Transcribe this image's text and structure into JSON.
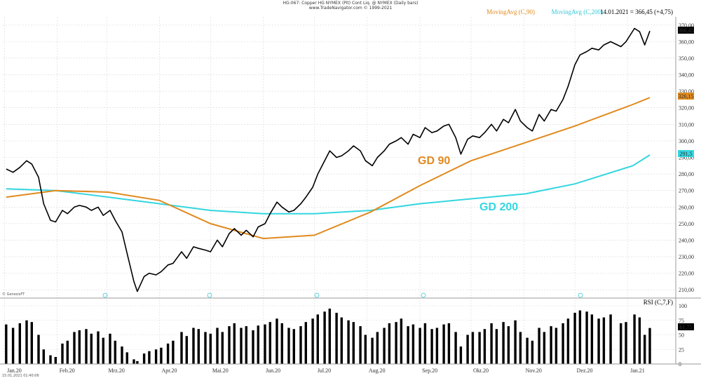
{
  "header": {
    "line1": "HG-067: Copper HG NYMEX (Pit) Cont Liq. @ NYMEX (Daily bars)",
    "line2": "www.TradeNavigator.com © 1999-2021"
  },
  "legend": {
    "ma90": "MovingAvg (C,90)",
    "ma200": "MovingAvg (C,200)",
    "readout": "14.01.2021 = 366,45 (+4,75)"
  },
  "annotations": {
    "gd90": "GD 90",
    "gd200": "GD 200"
  },
  "badges": {
    "last": "366,45",
    "ma90": "326,15",
    "ma200": "291,5",
    "rsi": "61,75"
  },
  "footer": {
    "genesis": "© GenesisFT",
    "timestamp": "15.01.2021 01:40:06"
  },
  "colors": {
    "price": "#000000",
    "ma90": "#e08a1e",
    "ma200": "#33d6e0",
    "rsi": "#000000",
    "grid": "#d8d8d8"
  },
  "chart_data": [
    {
      "type": "line",
      "title": "HG-067: Copper HG NYMEX (Pit) Cont Liq. @ NYMEX (Daily bars)",
      "xlabel": "",
      "ylabel": "",
      "ylim": [
        205,
        375
      ],
      "grid": true,
      "legend_position": "top-right",
      "months": [
        "Jan.20",
        "Feb.20",
        "Mrz.20",
        "Apr.20",
        "Mai.20",
        "Jun.20",
        "Jul.20",
        "Aug.20",
        "Sep.20",
        "Okt.20",
        "Nov.20",
        "Dez.20",
        "Jan.21"
      ],
      "y_ticks": [
        "210,00",
        "220,00",
        "230,00",
        "240,00",
        "250,00",
        "260,00",
        "270,00",
        "280,00",
        "290,00",
        "300,00",
        "310,00",
        "320,00",
        "330,00",
        "340,00",
        "350,00",
        "360,00",
        "370,00"
      ],
      "series": [
        {
          "name": "",
          "x": [
            "02.01.2020",
            "06.01.2020",
            "10.01.2020",
            "14.01.2020",
            "17.01.2020",
            "21.01.2020",
            "24.01.2020",
            "28.01.2020",
            "31.01.2020",
            "04.02.2020",
            "07.02.2020",
            "11.02.2020",
            "14.02.2020",
            "18.02.2020",
            "21.02.2020",
            "25.02.2020",
            "28.02.2020",
            "03.03.2020",
            "06.03.2020",
            "10.03.2020",
            "13.03.2020",
            "17.03.2020",
            "19.03.2020",
            "23.03.2020",
            "26.03.2020",
            "30.03.2020",
            "02.04.2020",
            "06.04.2020",
            "09.04.2020",
            "14.04.2020",
            "17.04.2020",
            "21.04.2020",
            "24.04.2020",
            "28.04.2020",
            "01.05.2020",
            "05.05.2020",
            "08.05.2020",
            "12.05.2020",
            "15.05.2020",
            "19.05.2020",
            "22.05.2020",
            "26.05.2020",
            "29.05.2020",
            "02.06.2020",
            "05.06.2020",
            "09.06.2020",
            "12.06.2020",
            "16.06.2020",
            "19.06.2020",
            "23.06.2020",
            "26.06.2020",
            "30.06.2020",
            "03.07.2020",
            "07.07.2020",
            "10.07.2020",
            "14.07.2020",
            "17.07.2020",
            "21.07.2020",
            "24.07.2020",
            "28.07.2020",
            "31.07.2020",
            "04.08.2020",
            "07.08.2020",
            "11.08.2020",
            "14.08.2020",
            "18.08.2020",
            "21.08.2020",
            "25.08.2020",
            "28.08.2020",
            "01.09.2020",
            "04.09.2020",
            "08.09.2020",
            "11.09.2020",
            "15.09.2020",
            "18.09.2020",
            "22.09.2020",
            "25.09.2020",
            "29.09.2020",
            "02.10.2020",
            "06.10.2020",
            "09.10.2020",
            "13.10.2020",
            "16.10.2020",
            "20.10.2020",
            "23.10.2020",
            "27.10.2020",
            "30.10.2020",
            "03.11.2020",
            "06.11.2020",
            "10.11.2020",
            "13.11.2020",
            "17.11.2020",
            "20.11.2020",
            "24.11.2020",
            "27.11.2020",
            "01.12.2020",
            "04.12.2020",
            "08.12.2020",
            "11.12.2020",
            "15.12.2020",
            "18.12.2020",
            "22.12.2020",
            "28.12.2020",
            "31.12.2020",
            "05.01.2021",
            "08.01.2021",
            "11.01.2021",
            "14.01.2021"
          ],
          "values": [
            283,
            281,
            284,
            288,
            286,
            278,
            262,
            252,
            251,
            258,
            256,
            260,
            261,
            260,
            258,
            260,
            255,
            258,
            252,
            245,
            232,
            215,
            209,
            218,
            220,
            219,
            221,
            225,
            226,
            233,
            229,
            236,
            235,
            234,
            233,
            240,
            236,
            244,
            247,
            243,
            246,
            242,
            248,
            250,
            256,
            263,
            260,
            257,
            258,
            262,
            266,
            272,
            280,
            288,
            294,
            290,
            291,
            294,
            297,
            294,
            288,
            285,
            290,
            294,
            298,
            300,
            302,
            298,
            304,
            302,
            308,
            305,
            306,
            309,
            310,
            302,
            292,
            301,
            303,
            302,
            305,
            310,
            306,
            313,
            311,
            319,
            312,
            308,
            306,
            316,
            312,
            319,
            318,
            325,
            333,
            346,
            352,
            354,
            356,
            355,
            358,
            360,
            357,
            360,
            368,
            366,
            358,
            366.45
          ]
        },
        {
          "name": "MovingAvg (C,90)",
          "x": [
            "02.01.2020",
            "31.01.2020",
            "02.03.2020",
            "01.04.2020",
            "01.05.2020",
            "01.06.2020",
            "01.07.2020",
            "03.08.2020",
            "01.09.2020",
            "01.10.2020",
            "02.11.2020",
            "01.12.2020",
            "04.01.2021",
            "14.01.2021"
          ],
          "values": [
            266,
            270,
            269,
            264,
            250,
            241,
            243,
            257,
            273,
            288,
            299,
            309,
            322,
            326.15
          ]
        },
        {
          "name": "MovingAvg (C,200)",
          "x": [
            "02.01.2020",
            "31.01.2020",
            "02.03.2020",
            "01.04.2020",
            "01.05.2020",
            "01.06.2020",
            "01.07.2020",
            "03.08.2020",
            "01.09.2020",
            "01.10.2020",
            "02.11.2020",
            "01.12.2020",
            "04.01.2021",
            "14.01.2021"
          ],
          "values": [
            271,
            270,
            266,
            262,
            258,
            256,
            256,
            258,
            262,
            265,
            268,
            274,
            285,
            291.5
          ]
        }
      ]
    },
    {
      "type": "bar",
      "title": "RSI (C,7,F)",
      "ylim": [
        0,
        100
      ],
      "y_ticks": [
        "0",
        "25",
        "50",
        "75",
        "100"
      ],
      "last_value": 61.75,
      "x": [
        "02.01.2020",
        "06.01.2020",
        "10.01.2020",
        "14.01.2020",
        "17.01.2020",
        "21.01.2020",
        "24.01.2020",
        "28.01.2020",
        "31.01.2020",
        "04.02.2020",
        "07.02.2020",
        "11.02.2020",
        "14.02.2020",
        "18.02.2020",
        "21.02.2020",
        "25.02.2020",
        "28.02.2020",
        "03.03.2020",
        "06.03.2020",
        "10.03.2020",
        "13.03.2020",
        "17.03.2020",
        "19.03.2020",
        "23.03.2020",
        "26.03.2020",
        "30.03.2020",
        "02.04.2020",
        "06.04.2020",
        "09.04.2020",
        "14.04.2020",
        "17.04.2020",
        "21.04.2020",
        "24.04.2020",
        "28.04.2020",
        "01.05.2020",
        "05.05.2020",
        "08.05.2020",
        "12.05.2020",
        "15.05.2020",
        "19.05.2020",
        "22.05.2020",
        "26.05.2020",
        "29.05.2020",
        "02.06.2020",
        "05.06.2020",
        "09.06.2020",
        "12.06.2020",
        "16.06.2020",
        "19.06.2020",
        "23.06.2020",
        "26.06.2020",
        "30.06.2020",
        "03.07.2020",
        "07.07.2020",
        "10.07.2020",
        "14.07.2020",
        "17.07.2020",
        "21.07.2020",
        "24.07.2020",
        "28.07.2020",
        "31.07.2020",
        "04.08.2020",
        "07.08.2020",
        "11.08.2020",
        "14.08.2020",
        "18.08.2020",
        "21.08.2020",
        "25.08.2020",
        "28.08.2020",
        "01.09.2020",
        "04.09.2020",
        "08.09.2020",
        "11.09.2020",
        "15.09.2020",
        "18.09.2020",
        "22.09.2020",
        "25.09.2020",
        "29.09.2020",
        "02.10.2020",
        "06.10.2020",
        "09.10.2020",
        "13.10.2020",
        "16.10.2020",
        "20.10.2020",
        "23.10.2020",
        "27.10.2020",
        "30.10.2020",
        "03.11.2020",
        "06.11.2020",
        "10.11.2020",
        "13.11.2020",
        "17.11.2020",
        "20.11.2020",
        "24.11.2020",
        "27.11.2020",
        "01.12.2020",
        "04.12.2020",
        "08.12.2020",
        "11.12.2020",
        "15.12.2020",
        "18.12.2020",
        "22.12.2020",
        "28.12.2020",
        "31.12.2020",
        "05.01.2021",
        "08.01.2021",
        "11.01.2021",
        "14.01.2021"
      ],
      "values": [
        68,
        62,
        70,
        75,
        72,
        50,
        25,
        15,
        12,
        35,
        40,
        55,
        58,
        60,
        52,
        56,
        45,
        52,
        40,
        30,
        20,
        8,
        5,
        18,
        22,
        25,
        28,
        35,
        40,
        55,
        48,
        62,
        60,
        55,
        52,
        62,
        55,
        65,
        70,
        62,
        65,
        58,
        66,
        68,
        72,
        78,
        70,
        62,
        60,
        65,
        72,
        78,
        85,
        90,
        95,
        88,
        80,
        75,
        72,
        65,
        50,
        45,
        55,
        62,
        70,
        72,
        78,
        65,
        68,
        62,
        70,
        60,
        62,
        68,
        70,
        55,
        30,
        50,
        55,
        55,
        60,
        70,
        60,
        72,
        65,
        75,
        55,
        45,
        40,
        62,
        55,
        65,
        62,
        70,
        78,
        88,
        92,
        90,
        85,
        78,
        80,
        85,
        70,
        72,
        85,
        80,
        50,
        61.75
      ]
    }
  ]
}
